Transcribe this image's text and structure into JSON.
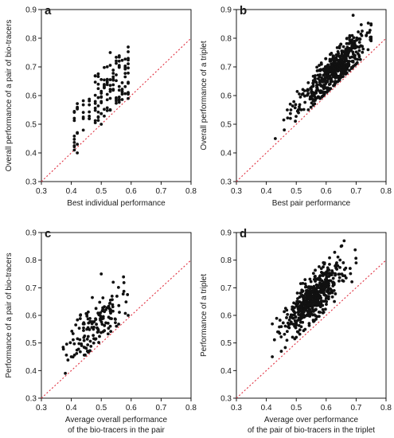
{
  "chart_data": [
    {
      "panel": "a",
      "type": "scatter",
      "xlabel": [
        "Best individual performance"
      ],
      "ylabel": "Overall performance of a pair of bio-tracers",
      "xlim": [
        0.3,
        0.8
      ],
      "ylim": [
        0.3,
        0.9
      ],
      "xticks": [
        "0.3",
        "0.4",
        "0.5",
        "0.6",
        "0.7",
        "0.8"
      ],
      "yticks": [
        "0.3",
        "0.4",
        "0.5",
        "0.6",
        "0.7",
        "0.8",
        "0.9"
      ],
      "reference_line": "y = x",
      "cloud": {
        "seed": 11,
        "n": 140,
        "x_levels": [
          0.41,
          0.42,
          0.44,
          0.46,
          0.48,
          0.49,
          0.5,
          0.51,
          0.52,
          0.53,
          0.54,
          0.55,
          0.56,
          0.57,
          0.58,
          0.59
        ],
        "offset_min": 0.01,
        "offset_max": 0.19
      },
      "extra_points": [
        [
          0.41,
          0.41
        ],
        [
          0.42,
          0.4
        ],
        [
          0.5,
          0.5
        ],
        [
          0.53,
          0.75
        ],
        [
          0.56,
          0.72
        ],
        [
          0.59,
          0.59
        ]
      ]
    },
    {
      "panel": "b",
      "type": "scatter",
      "xlabel": [
        "Best pair performance"
      ],
      "ylabel": "Overall performance of a triplet",
      "xlim": [
        0.3,
        0.8
      ],
      "ylim": [
        0.3,
        0.9
      ],
      "xticks": [
        "0.3",
        "0.4",
        "0.5",
        "0.6",
        "0.7",
        "0.8"
      ],
      "yticks": [
        "0.3",
        "0.4",
        "0.5",
        "0.6",
        "0.7",
        "0.8",
        "0.9"
      ],
      "reference_line": "y = x",
      "cloud": {
        "seed": 23,
        "n": 520,
        "x_min": 0.45,
        "x_max": 0.75,
        "x_center": 0.62,
        "x_spread": 0.055,
        "offset_min": 0.01,
        "offset_max": 0.13,
        "offset_center": 0.06,
        "offset_spread": 0.035
      },
      "extra_points": [
        [
          0.43,
          0.45
        ],
        [
          0.46,
          0.48
        ],
        [
          0.47,
          0.55
        ],
        [
          0.48,
          0.57
        ],
        [
          0.69,
          0.88
        ],
        [
          0.75,
          0.85
        ],
        [
          0.74,
          0.76
        ]
      ]
    },
    {
      "panel": "c",
      "type": "scatter",
      "xlabel": [
        "Average overall performance",
        "of the bio-tracers in the pair"
      ],
      "ylabel": "Performance of a pair of bio-tracers",
      "xlim": [
        0.3,
        0.8
      ],
      "ylim": [
        0.3,
        0.9
      ],
      "xticks": [
        "0.3",
        "0.4",
        "0.5",
        "0.6",
        "0.7",
        "0.8"
      ],
      "yticks": [
        "0.3",
        "0.4",
        "0.5",
        "0.6",
        "0.7",
        "0.8",
        "0.9"
      ],
      "reference_line": "y = x",
      "cloud": {
        "seed": 37,
        "n": 150,
        "x_min": 0.37,
        "x_max": 0.59,
        "x_center": 0.48,
        "x_spread": 0.045,
        "offset_min": 0.01,
        "offset_max": 0.2,
        "offset_center": 0.085,
        "offset_spread": 0.045
      },
      "extra_points": [
        [
          0.38,
          0.39
        ],
        [
          0.4,
          0.45
        ],
        [
          0.5,
          0.75
        ],
        [
          0.54,
          0.72
        ],
        [
          0.59,
          0.6
        ]
      ]
    },
    {
      "panel": "d",
      "type": "scatter",
      "xlabel": [
        "Average over performance",
        "of the pair of bio-tracers in the triplet"
      ],
      "ylabel": "Performance of a triplet",
      "xlim": [
        0.3,
        0.8
      ],
      "ylim": [
        0.3,
        0.9
      ],
      "xticks": [
        "0.3",
        "0.4",
        "0.5",
        "0.6",
        "0.7",
        "0.8"
      ],
      "yticks": [
        "0.3",
        "0.4",
        "0.5",
        "0.6",
        "0.7",
        "0.8",
        "0.9"
      ],
      "reference_line": "y = x",
      "cloud": {
        "seed": 53,
        "n": 560,
        "x_min": 0.42,
        "x_max": 0.72,
        "x_center": 0.56,
        "x_spread": 0.05,
        "offset_min": 0.02,
        "offset_max": 0.2,
        "offset_center": 0.105,
        "offset_spread": 0.04
      },
      "extra_points": [
        [
          0.42,
          0.45
        ],
        [
          0.45,
          0.47
        ],
        [
          0.66,
          0.87
        ],
        [
          0.65,
          0.85
        ],
        [
          0.7,
          0.79
        ],
        [
          0.68,
          0.77
        ]
      ]
    }
  ]
}
